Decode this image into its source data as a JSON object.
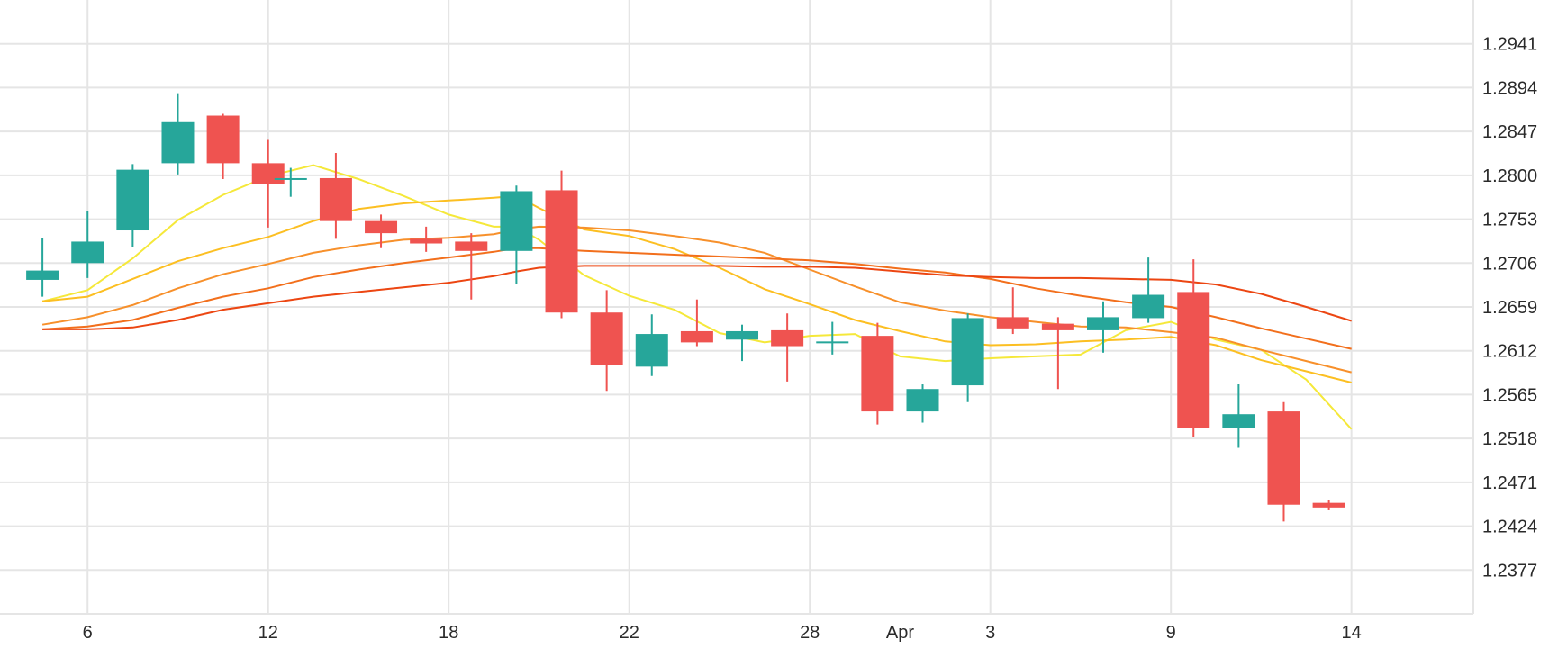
{
  "chart_data": {
    "type": "candlestick",
    "x_ticks": [
      {
        "label": "6",
        "day": 1
      },
      {
        "label": "12",
        "day": 5
      },
      {
        "label": "18",
        "day": 9
      },
      {
        "label": "22",
        "day": 13
      },
      {
        "label": "28",
        "day": 17
      },
      {
        "label": "Apr",
        "day": 19
      },
      {
        "label": "3",
        "day": 21
      },
      {
        "label": "9",
        "day": 25
      },
      {
        "label": "14",
        "day": 29
      }
    ],
    "y_ticks": [
      "1.2941",
      "1.2894",
      "1.2847",
      "1.2800",
      "1.2753",
      "1.2706",
      "1.2659",
      "1.2612",
      "1.2565",
      "1.2518",
      "1.2471",
      "1.2424",
      "1.2377"
    ],
    "ylim": [
      1.233,
      1.2988
    ],
    "xlim": [
      -0.94,
      31.7
    ],
    "grid": true,
    "up_color": "#26a69a",
    "down_color": "#ef5350",
    "candles": [
      {
        "day": 0,
        "open": 1.2688,
        "high": 1.2733,
        "low": 1.267,
        "close": 1.2698
      },
      {
        "day": 1,
        "open": 1.2706,
        "high": 1.2762,
        "low": 1.269,
        "close": 1.2729
      },
      {
        "day": 2,
        "open": 1.2741,
        "high": 1.2812,
        "low": 1.2723,
        "close": 1.2806
      },
      {
        "day": 3,
        "open": 1.2813,
        "high": 1.2888,
        "low": 1.2801,
        "close": 1.2857
      },
      {
        "day": 4,
        "open": 1.2864,
        "high": 1.2866,
        "low": 1.2796,
        "close": 1.2813
      },
      {
        "day": 5,
        "open": 1.2813,
        "high": 1.2838,
        "low": 1.2744,
        "close": 1.2791
      },
      {
        "day": 5.5,
        "open": 1.2796,
        "high": 1.2808,
        "low": 1.2777,
        "close": 1.2797
      },
      {
        "day": 6.5,
        "open": 1.2797,
        "high": 1.2824,
        "low": 1.2732,
        "close": 1.2751
      },
      {
        "day": 7.5,
        "open": 1.2751,
        "high": 1.2758,
        "low": 1.2722,
        "close": 1.2738
      },
      {
        "day": 8.5,
        "open": 1.2732,
        "high": 1.2745,
        "low": 1.2718,
        "close": 1.2727
      },
      {
        "day": 9.5,
        "open": 1.2729,
        "high": 1.2738,
        "low": 1.2667,
        "close": 1.2719
      },
      {
        "day": 10.5,
        "open": 1.2719,
        "high": 1.2789,
        "low": 1.2684,
        "close": 1.2783
      },
      {
        "day": 11.5,
        "open": 1.2784,
        "high": 1.2805,
        "low": 1.2647,
        "close": 1.2653
      },
      {
        "day": 12.5,
        "open": 1.2653,
        "high": 1.2677,
        "low": 1.2569,
        "close": 1.2597
      },
      {
        "day": 13.5,
        "open": 1.2595,
        "high": 1.2651,
        "low": 1.2585,
        "close": 1.263
      },
      {
        "day": 14.5,
        "open": 1.2633,
        "high": 1.2667,
        "low": 1.2617,
        "close": 1.2621
      },
      {
        "day": 15.5,
        "open": 1.2624,
        "high": 1.264,
        "low": 1.2601,
        "close": 1.2633
      },
      {
        "day": 16.5,
        "open": 1.2634,
        "high": 1.2652,
        "low": 1.2579,
        "close": 1.2617
      },
      {
        "day": 17.5,
        "open": 1.2622,
        "high": 1.2643,
        "low": 1.2608,
        "close": 1.2622
      },
      {
        "day": 18.5,
        "open": 1.2628,
        "high": 1.2642,
        "low": 1.2533,
        "close": 1.2547
      },
      {
        "day": 19.5,
        "open": 1.2547,
        "high": 1.2576,
        "low": 1.2535,
        "close": 1.2571
      },
      {
        "day": 20.5,
        "open": 1.2575,
        "high": 1.2652,
        "low": 1.2557,
        "close": 1.2647
      },
      {
        "day": 21.5,
        "open": 1.2648,
        "high": 1.268,
        "low": 1.263,
        "close": 1.2636
      },
      {
        "day": 22.5,
        "open": 1.2641,
        "high": 1.2648,
        "low": 1.2571,
        "close": 1.2634
      },
      {
        "day": 23.5,
        "open": 1.2634,
        "high": 1.2665,
        "low": 1.261,
        "close": 1.2648
      },
      {
        "day": 24.5,
        "open": 1.2647,
        "high": 1.2712,
        "low": 1.2642,
        "close": 1.2672
      },
      {
        "day": 25.5,
        "open": 1.2675,
        "high": 1.271,
        "low": 1.252,
        "close": 1.2529
      },
      {
        "day": 26.5,
        "open": 1.2529,
        "high": 1.2576,
        "low": 1.2508,
        "close": 1.2544
      },
      {
        "day": 27.5,
        "open": 1.2547,
        "high": 1.2557,
        "low": 1.2429,
        "close": 1.2447
      },
      {
        "day": 28.5,
        "open": 1.2449,
        "high": 1.2452,
        "low": 1.2441,
        "close": 1.2444
      }
    ],
    "moving_averages": [
      {
        "color": "#f5e83a",
        "points": [
          [
            0,
            1.2665
          ],
          [
            1,
            1.2677
          ],
          [
            2,
            1.2711
          ],
          [
            3,
            1.2752
          ],
          [
            4,
            1.2779
          ],
          [
            5,
            1.2799
          ],
          [
            6,
            1.2811
          ],
          [
            7,
            1.2796
          ],
          [
            8,
            1.2778
          ],
          [
            9,
            1.2758
          ],
          [
            10,
            1.2745
          ],
          [
            10.5,
            1.2745
          ],
          [
            11,
            1.2731
          ],
          [
            12,
            1.2693
          ],
          [
            13,
            1.2671
          ],
          [
            14,
            1.2656
          ],
          [
            15,
            1.2631
          ],
          [
            16,
            1.2621
          ],
          [
            17,
            1.2628
          ],
          [
            18,
            1.263
          ],
          [
            19,
            1.2606
          ],
          [
            20,
            1.2601
          ],
          [
            21,
            1.2604
          ],
          [
            22,
            1.2606
          ],
          [
            23,
            1.2608
          ],
          [
            24,
            1.2634
          ],
          [
            25,
            1.2643
          ],
          [
            26,
            1.2624
          ],
          [
            27,
            1.2613
          ],
          [
            28,
            1.2581
          ],
          [
            29,
            1.2528
          ]
        ]
      },
      {
        "color": "#fcbf22",
        "points": [
          [
            0,
            1.2665
          ],
          [
            1,
            1.267
          ],
          [
            2,
            1.2689
          ],
          [
            3,
            1.2708
          ],
          [
            4,
            1.2722
          ],
          [
            5,
            1.2734
          ],
          [
            6,
            1.2751
          ],
          [
            7,
            1.2764
          ],
          [
            8,
            1.277
          ],
          [
            9,
            1.2773
          ],
          [
            10,
            1.2776
          ],
          [
            10.5,
            1.2778
          ],
          [
            11,
            1.2765
          ],
          [
            12,
            1.2742
          ],
          [
            13,
            1.2735
          ],
          [
            14,
            1.2721
          ],
          [
            15,
            1.2701
          ],
          [
            16,
            1.2678
          ],
          [
            17,
            1.2662
          ],
          [
            18,
            1.2645
          ],
          [
            19,
            1.2633
          ],
          [
            20,
            1.2622
          ],
          [
            21,
            1.2618
          ],
          [
            22,
            1.2619
          ],
          [
            23,
            1.2622
          ],
          [
            24,
            1.2624
          ],
          [
            25,
            1.2627
          ],
          [
            26,
            1.2618
          ],
          [
            27,
            1.2602
          ],
          [
            28,
            1.259
          ],
          [
            29,
            1.2578
          ]
        ]
      },
      {
        "color": "#f7902b",
        "points": [
          [
            0,
            1.264
          ],
          [
            1,
            1.2648
          ],
          [
            2,
            1.2661
          ],
          [
            3,
            1.2679
          ],
          [
            4,
            1.2694
          ],
          [
            5,
            1.2705
          ],
          [
            6,
            1.2717
          ],
          [
            7,
            1.2725
          ],
          [
            8,
            1.2731
          ],
          [
            9,
            1.2733
          ],
          [
            10,
            1.2737
          ],
          [
            10.5,
            1.2742
          ],
          [
            11,
            1.2745
          ],
          [
            12,
            1.2744
          ],
          [
            13,
            1.2741
          ],
          [
            14,
            1.2735
          ],
          [
            15,
            1.2728
          ],
          [
            16,
            1.2717
          ],
          [
            17,
            1.2699
          ],
          [
            18,
            1.2681
          ],
          [
            19,
            1.2664
          ],
          [
            20,
            1.2655
          ],
          [
            21,
            1.2648
          ],
          [
            22,
            1.2643
          ],
          [
            23,
            1.2638
          ],
          [
            24,
            1.2637
          ],
          [
            25,
            1.2632
          ],
          [
            26,
            1.2626
          ],
          [
            27,
            1.2613
          ],
          [
            28,
            1.2601
          ],
          [
            29,
            1.2589
          ]
        ]
      },
      {
        "color": "#f26f1c",
        "points": [
          [
            0,
            1.2635
          ],
          [
            1,
            1.2638
          ],
          [
            2,
            1.2645
          ],
          [
            3,
            1.2658
          ],
          [
            4,
            1.267
          ],
          [
            5,
            1.2679
          ],
          [
            6,
            1.2691
          ],
          [
            7,
            1.2699
          ],
          [
            8,
            1.2706
          ],
          [
            9,
            1.2712
          ],
          [
            10,
            1.2718
          ],
          [
            10.5,
            1.2722
          ],
          [
            11,
            1.2722
          ],
          [
            12,
            1.2719
          ],
          [
            13,
            1.2717
          ],
          [
            14,
            1.2715
          ],
          [
            15,
            1.2713
          ],
          [
            16,
            1.2711
          ],
          [
            17,
            1.2709
          ],
          [
            18,
            1.2705
          ],
          [
            19,
            1.27
          ],
          [
            20,
            1.2696
          ],
          [
            21,
            1.2689
          ],
          [
            22,
            1.2679
          ],
          [
            23,
            1.2671
          ],
          [
            24,
            1.2664
          ],
          [
            25,
            1.2659
          ],
          [
            26,
            1.2648
          ],
          [
            27,
            1.2636
          ],
          [
            28,
            1.2625
          ],
          [
            29,
            1.2614
          ]
        ]
      },
      {
        "color": "#ec4612",
        "points": [
          [
            0,
            1.2635
          ],
          [
            1,
            1.2635
          ],
          [
            2,
            1.2637
          ],
          [
            3,
            1.2645
          ],
          [
            4,
            1.2656
          ],
          [
            5,
            1.2663
          ],
          [
            6,
            1.267
          ],
          [
            7,
            1.2675
          ],
          [
            8,
            1.268
          ],
          [
            9,
            1.2685
          ],
          [
            10,
            1.2692
          ],
          [
            10.5,
            1.2697
          ],
          [
            11,
            1.2701
          ],
          [
            12,
            1.2703
          ],
          [
            13,
            1.2703
          ],
          [
            14,
            1.2703
          ],
          [
            15,
            1.2703
          ],
          [
            16,
            1.2702
          ],
          [
            17,
            1.2702
          ],
          [
            18,
            1.2701
          ],
          [
            19,
            1.2697
          ],
          [
            20,
            1.2693
          ],
          [
            21,
            1.2691
          ],
          [
            22,
            1.269
          ],
          [
            23,
            1.269
          ],
          [
            24,
            1.2689
          ],
          [
            25,
            1.2688
          ],
          [
            26,
            1.2683
          ],
          [
            27,
            1.2673
          ],
          [
            28,
            1.2659
          ],
          [
            29,
            1.2644
          ]
        ]
      }
    ]
  }
}
